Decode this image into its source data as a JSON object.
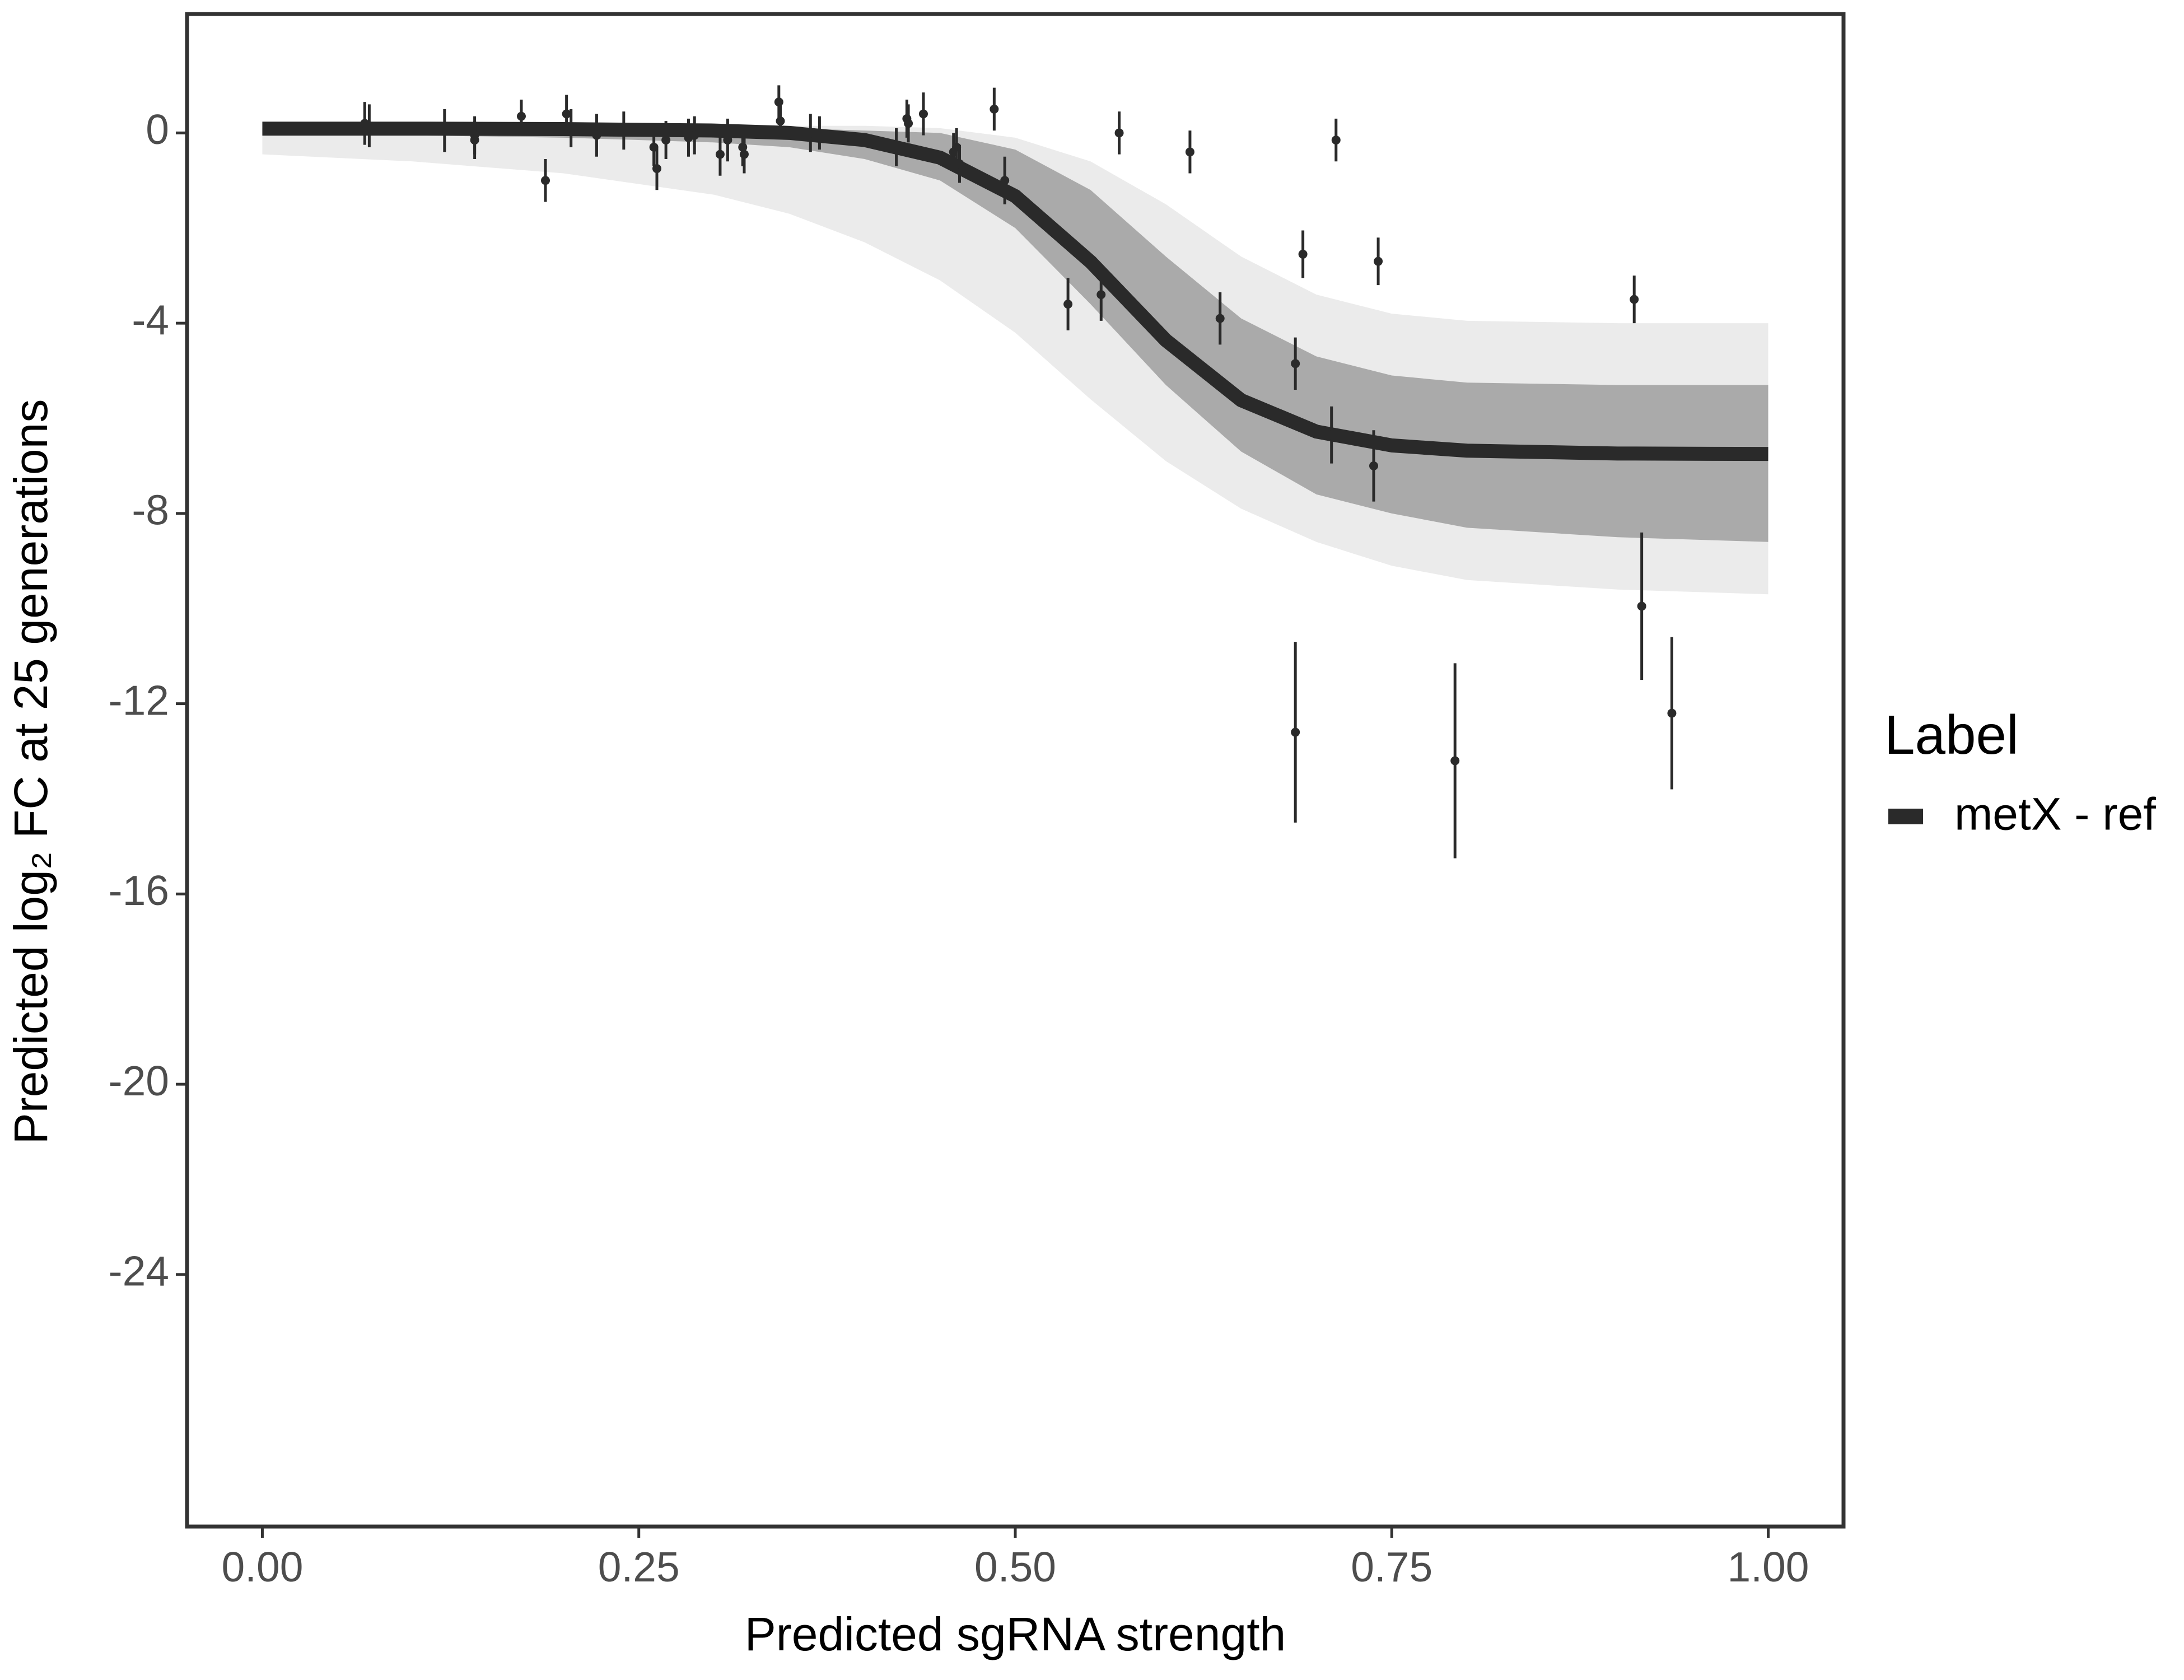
{
  "chart_data": {
    "type": "scatter",
    "x_label": "Predicted sgRNA strength",
    "y_label": "Predicted log₂ FC at 25 generations",
    "xlim": [
      -0.05,
      1.05
    ],
    "ylim": [
      -29.3,
      2.5
    ],
    "xticks": [
      {
        "value": 0,
        "label": "0.00"
      },
      {
        "value": 0.25,
        "label": "0.25"
      },
      {
        "value": 0.5,
        "label": "0.50"
      },
      {
        "value": 0.75,
        "label": "0.75"
      },
      {
        "value": 1,
        "label": "1.00"
      }
    ],
    "yticks": [
      0,
      -4,
      -8,
      -12,
      -16,
      -20,
      -24
    ],
    "grid": false,
    "legend_title": "Label",
    "legend_position": "right",
    "band_outer": {
      "color": "#ebebeb",
      "x": [
        0,
        0.1,
        0.2,
        0.3,
        0.35,
        0.4,
        0.45,
        0.5,
        0.55,
        0.6,
        0.65,
        0.7,
        0.75,
        0.8,
        0.9,
        1.0
      ],
      "upper": [
        0.15,
        0.15,
        0.15,
        0.15,
        0.15,
        0.15,
        0.1,
        -0.1,
        -0.6,
        -1.5,
        -2.6,
        -3.4,
        -3.8,
        -3.95,
        -4.0,
        -4.0
      ],
      "lower": [
        -0.45,
        -0.6,
        -0.85,
        -1.3,
        -1.7,
        -2.3,
        -3.1,
        -4.2,
        -5.6,
        -6.9,
        -7.9,
        -8.6,
        -9.1,
        -9.4,
        -9.6,
        -9.7
      ]
    },
    "band_inner": {
      "color": "#aaaaaa",
      "x": [
        0,
        0.1,
        0.2,
        0.3,
        0.35,
        0.4,
        0.45,
        0.5,
        0.55,
        0.6,
        0.65,
        0.7,
        0.75,
        0.8,
        0.9,
        1.0
      ],
      "upper": [
        0.1,
        0.1,
        0.1,
        0.1,
        0.1,
        0.05,
        0.0,
        -0.35,
        -1.2,
        -2.6,
        -3.9,
        -4.7,
        -5.1,
        -5.25,
        -5.3,
        -5.3
      ],
      "lower": [
        -0.05,
        -0.05,
        -0.1,
        -0.2,
        -0.3,
        -0.55,
        -1.0,
        -2.0,
        -3.6,
        -5.3,
        -6.7,
        -7.6,
        -8.0,
        -8.3,
        -8.5,
        -8.6
      ]
    },
    "fit": {
      "name": "metX - ref",
      "color": "#2a2a2a",
      "x": [
        0,
        0.1,
        0.2,
        0.3,
        0.35,
        0.4,
        0.45,
        0.5,
        0.55,
        0.6,
        0.65,
        0.7,
        0.75,
        0.8,
        0.9,
        1.0
      ],
      "values": [
        0.09,
        0.09,
        0.08,
        0.05,
        0.0,
        -0.15,
        -0.52,
        -1.33,
        -2.71,
        -4.36,
        -5.62,
        -6.28,
        -6.57,
        -6.68,
        -6.74,
        -6.75
      ]
    },
    "points": {
      "color": "#2a2a2a",
      "x": [
        0.068,
        0.071,
        0.121,
        0.141,
        0.141,
        0.172,
        0.188,
        0.202,
        0.205,
        0.222,
        0.24,
        0.26,
        0.262,
        0.268,
        0.283,
        0.287,
        0.304,
        0.309,
        0.319,
        0.32,
        0.343,
        0.344,
        0.364,
        0.37,
        0.421,
        0.428,
        0.429,
        0.439,
        0.459,
        0.461,
        0.463,
        0.486,
        0.493,
        0.535,
        0.557,
        0.569,
        0.616,
        0.636,
        0.686,
        0.686,
        0.691,
        0.71,
        0.713,
        0.738,
        0.741,
        0.792,
        0.911,
        0.916,
        0.936
      ],
      "values": [
        0.2,
        0.15,
        0.05,
        -0.05,
        -0.15,
        0.35,
        -1.0,
        0.4,
        0.1,
        -0.05,
        0.05,
        -0.3,
        -0.75,
        -0.15,
        -0.1,
        -0.05,
        -0.45,
        -0.15,
        -0.3,
        -0.45,
        0.65,
        0.25,
        0.0,
        0.0,
        -0.3,
        0.3,
        0.2,
        0.4,
        -0.4,
        -0.3,
        -0.65,
        0.5,
        -1.0,
        -3.6,
        -3.4,
        0.0,
        -0.4,
        -3.9,
        -4.85,
        -12.6,
        -2.55,
        -6.35,
        -0.15,
        -7.0,
        -2.7,
        -13.2,
        -3.5,
        -9.95,
        -12.2
      ],
      "errors": [
        0.45,
        0.45,
        0.45,
        0.4,
        0.4,
        0.35,
        0.45,
        0.4,
        0.4,
        0.45,
        0.4,
        0.4,
        0.45,
        0.4,
        0.4,
        0.4,
        0.45,
        0.45,
        0.4,
        0.4,
        0.35,
        0.35,
        0.4,
        0.35,
        0.4,
        0.4,
        0.4,
        0.45,
        0.4,
        0.4,
        0.4,
        0.45,
        0.5,
        0.55,
        0.55,
        0.45,
        0.45,
        0.55,
        0.55,
        1.9,
        0.5,
        0.6,
        0.45,
        0.75,
        0.5,
        2.05,
        0.5,
        1.55,
        1.6
      ]
    }
  }
}
